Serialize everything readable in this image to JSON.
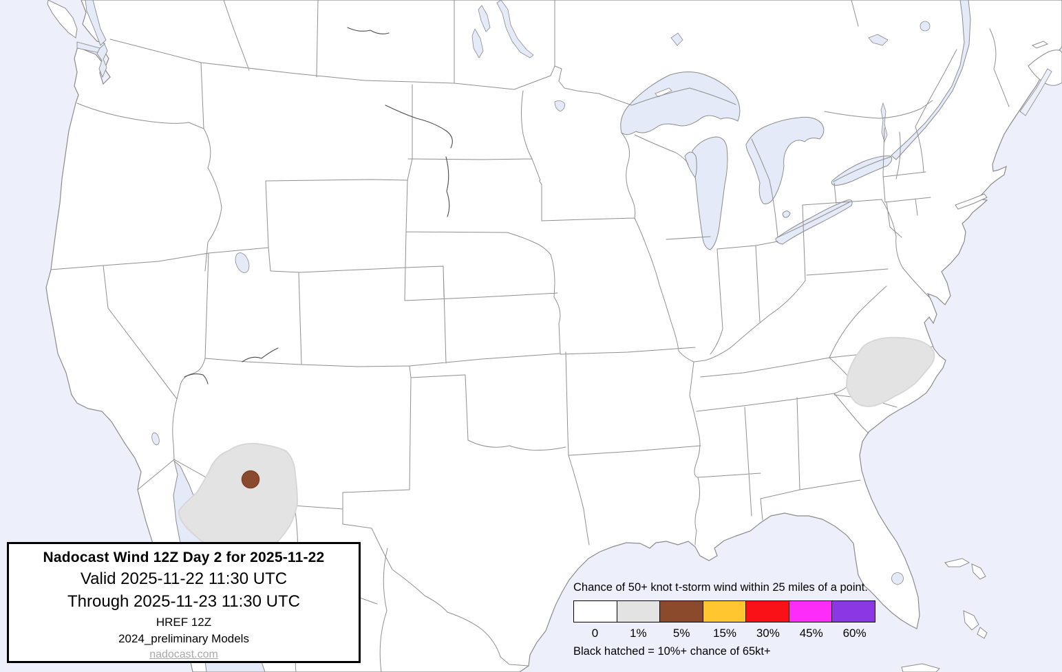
{
  "info_box": {
    "title": "Nadocast Wind 12Z Day 2 for 2025-11-22",
    "valid": "Valid 2025-11-22 11:30 UTC",
    "through": "Through 2025-11-23 11:30 UTC",
    "model": "HREF 12Z",
    "models_note": "2024_preliminary Models",
    "site_link": "nadocast.com"
  },
  "legend": {
    "title": "Chance of 50+ knot t-storm wind within 25 miles of a point.",
    "note": "Black hatched = 10%+ chance of 65kt+",
    "items": [
      {
        "label": "0",
        "color": "#ffffff"
      },
      {
        "label": "1%",
        "color": "#e3e3e3"
      },
      {
        "label": "5%",
        "color": "#8b4a2b"
      },
      {
        "label": "15%",
        "color": "#fec62f"
      },
      {
        "label": "30%",
        "color": "#fa1117"
      },
      {
        "label": "45%",
        "color": "#fd2cf9"
      },
      {
        "label": "60%",
        "color": "#8c37e4"
      }
    ]
  },
  "map": {
    "water_color": "#edf0fa",
    "lake_color": "#e4eaf7",
    "land_color": "#ffffff",
    "border_color": "#8b8b8b",
    "risk_areas": [
      {
        "name": "arizona-sonora-1pct",
        "level": "1%",
        "color": "#e3e3e3"
      },
      {
        "name": "central-arizona-5pct",
        "level": "5%",
        "color": "#8a4a2c"
      },
      {
        "name": "east-carolina-virginia-1pct",
        "level": "1%",
        "color": "#e3e3e3"
      }
    ]
  }
}
